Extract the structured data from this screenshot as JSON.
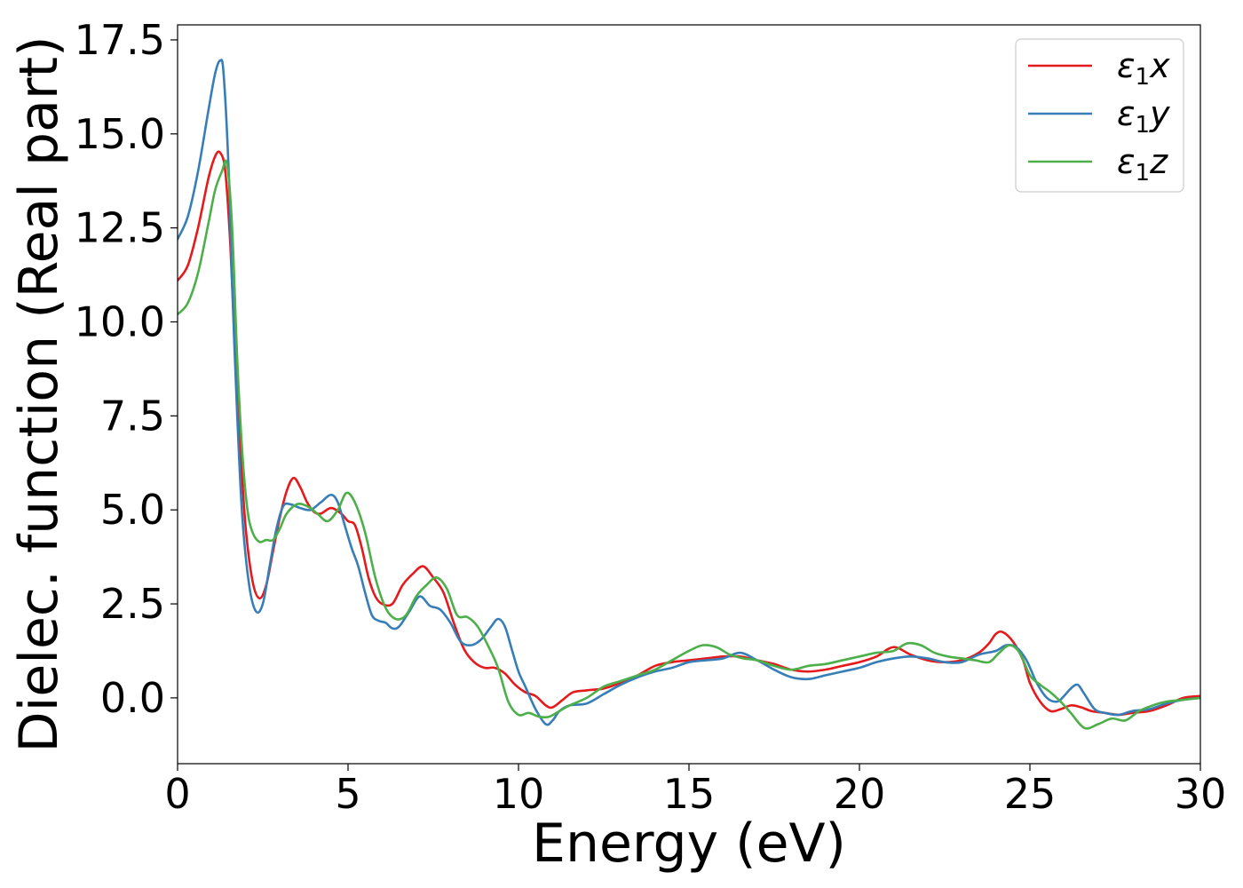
{
  "chart_data": {
    "type": "line",
    "xlabel": "Energy (eV)",
    "ylabel": "Dielec. function (Real part)",
    "xlim": [
      0,
      30
    ],
    "ylim": [
      -1.75,
      17.9
    ],
    "xticks": [
      0,
      5,
      10,
      15,
      20,
      25,
      30
    ],
    "xtick_labels": [
      "0",
      "5",
      "10",
      "15",
      "20",
      "25",
      "30"
    ],
    "yticks": [
      0.0,
      2.5,
      5.0,
      7.5,
      10.0,
      12.5,
      15.0,
      17.5
    ],
    "ytick_labels": [
      "0.0",
      "2.5",
      "5.0",
      "7.5",
      "10.0",
      "12.5",
      "15.0",
      "17.5"
    ],
    "grid": false,
    "legend_position": "top-right",
    "series": [
      {
        "name": "ε1x",
        "symbol": "ε",
        "subscript": "1",
        "component": "x",
        "color": "#e41a1c",
        "x": [
          0,
          0.3,
          0.6,
          0.9,
          1.1,
          1.25,
          1.4,
          1.55,
          1.7,
          1.85,
          2.0,
          2.2,
          2.4,
          2.6,
          2.8,
          3.0,
          3.2,
          3.4,
          3.6,
          3.8,
          4.0,
          4.2,
          4.5,
          4.8,
          5.0,
          5.2,
          5.4,
          5.6,
          5.8,
          6.0,
          6.3,
          6.6,
          6.9,
          7.2,
          7.5,
          7.8,
          8.1,
          8.4,
          8.7,
          9.0,
          9.3,
          9.6,
          9.9,
          10.2,
          10.5,
          10.8,
          11.0,
          11.3,
          11.6,
          12.0,
          12.5,
          13.0,
          13.5,
          14.0,
          14.5,
          15.0,
          15.5,
          16.0,
          16.5,
          17.0,
          17.5,
          18.0,
          18.5,
          19.0,
          19.5,
          20.0,
          20.5,
          21.0,
          21.5,
          22.0,
          22.5,
          23.0,
          23.5,
          23.8,
          24.0,
          24.2,
          24.5,
          24.8,
          25.0,
          25.3,
          25.6,
          25.9,
          26.2,
          26.5,
          26.8,
          27.2,
          27.6,
          28.0,
          28.5,
          29.0,
          29.5,
          30.0
        ],
        "y": [
          11.1,
          11.5,
          12.5,
          13.8,
          14.4,
          14.5,
          14.0,
          12.0,
          9.0,
          6.5,
          4.5,
          3.1,
          2.65,
          3.0,
          3.9,
          4.8,
          5.5,
          5.85,
          5.6,
          5.2,
          4.95,
          4.9,
          5.05,
          4.9,
          4.7,
          4.6,
          4.0,
          3.2,
          2.7,
          2.5,
          2.5,
          3.0,
          3.3,
          3.5,
          3.2,
          2.8,
          2.0,
          1.3,
          0.95,
          0.8,
          0.8,
          0.65,
          0.35,
          0.15,
          0.05,
          -0.2,
          -0.25,
          -0.05,
          0.15,
          0.2,
          0.25,
          0.4,
          0.6,
          0.85,
          0.95,
          1.0,
          1.05,
          1.1,
          1.1,
          1.0,
          0.9,
          0.75,
          0.7,
          0.75,
          0.85,
          0.95,
          1.1,
          1.35,
          1.15,
          1.0,
          0.95,
          1.0,
          1.2,
          1.45,
          1.7,
          1.75,
          1.5,
          1.0,
          0.4,
          -0.1,
          -0.35,
          -0.3,
          -0.2,
          -0.25,
          -0.35,
          -0.4,
          -0.45,
          -0.4,
          -0.35,
          -0.2,
          0.0,
          0.05
        ]
      },
      {
        "name": "ε1y",
        "symbol": "ε",
        "subscript": "1",
        "component": "y",
        "color": "#377eb8",
        "x": [
          0,
          0.3,
          0.6,
          0.9,
          1.1,
          1.25,
          1.35,
          1.5,
          1.6,
          1.75,
          1.9,
          2.1,
          2.3,
          2.5,
          2.7,
          2.9,
          3.1,
          3.3,
          3.6,
          3.9,
          4.2,
          4.5,
          4.7,
          4.9,
          5.1,
          5.3,
          5.5,
          5.7,
          5.9,
          6.1,
          6.3,
          6.5,
          6.8,
          7.1,
          7.4,
          7.7,
          8.0,
          8.3,
          8.6,
          8.9,
          9.2,
          9.4,
          9.6,
          9.8,
          10.0,
          10.2,
          10.5,
          10.8,
          11.0,
          11.2,
          11.5,
          12.0,
          12.5,
          13.0,
          13.5,
          14.0,
          14.5,
          15.0,
          15.5,
          16.0,
          16.5,
          17.0,
          17.5,
          18.0,
          18.5,
          19.0,
          19.5,
          20.0,
          20.5,
          21.0,
          21.5,
          22.0,
          22.5,
          23.0,
          23.5,
          24.0,
          24.3,
          24.6,
          24.9,
          25.2,
          25.5,
          25.8,
          26.0,
          26.2,
          26.4,
          26.6,
          26.9,
          27.2,
          27.6,
          28.0,
          28.5,
          29.0,
          29.5,
          30.0
        ],
        "y": [
          12.2,
          12.8,
          14.0,
          15.6,
          16.6,
          16.95,
          16.6,
          14.0,
          11.0,
          7.5,
          4.8,
          3.0,
          2.3,
          2.5,
          3.5,
          4.5,
          5.1,
          5.15,
          5.05,
          5.0,
          5.2,
          5.4,
          5.2,
          4.6,
          4.0,
          3.5,
          2.8,
          2.2,
          2.05,
          2.0,
          1.85,
          1.9,
          2.3,
          2.7,
          2.45,
          2.35,
          2.0,
          1.5,
          1.4,
          1.55,
          1.9,
          2.1,
          1.9,
          1.3,
          0.7,
          0.3,
          -0.3,
          -0.7,
          -0.6,
          -0.35,
          -0.2,
          -0.15,
          0.1,
          0.35,
          0.55,
          0.7,
          0.8,
          0.95,
          1.0,
          1.05,
          1.2,
          1.0,
          0.75,
          0.55,
          0.5,
          0.6,
          0.7,
          0.8,
          0.95,
          1.05,
          1.1,
          1.05,
          0.95,
          0.95,
          1.15,
          1.25,
          1.4,
          1.35,
          1.0,
          0.4,
          0.0,
          -0.1,
          0.05,
          0.25,
          0.35,
          0.1,
          -0.3,
          -0.4,
          -0.45,
          -0.35,
          -0.3,
          -0.15,
          -0.05,
          0.0
        ]
      },
      {
        "name": "ε1z",
        "symbol": "ε",
        "subscript": "1",
        "component": "z",
        "color": "#4daf4a",
        "x": [
          0,
          0.3,
          0.6,
          0.9,
          1.1,
          1.3,
          1.45,
          1.6,
          1.75,
          1.9,
          2.05,
          2.2,
          2.4,
          2.6,
          2.8,
          3.0,
          3.2,
          3.5,
          3.8,
          4.1,
          4.4,
          4.7,
          4.95,
          5.2,
          5.5,
          5.8,
          6.1,
          6.4,
          6.7,
          7.0,
          7.3,
          7.6,
          7.9,
          8.2,
          8.5,
          8.8,
          9.1,
          9.4,
          9.7,
          10.0,
          10.3,
          10.6,
          10.9,
          11.2,
          11.5,
          12.0,
          12.5,
          13.0,
          13.5,
          14.0,
          14.5,
          15.0,
          15.4,
          15.8,
          16.2,
          16.6,
          17.0,
          17.5,
          18.0,
          18.5,
          19.0,
          19.5,
          20.0,
          20.5,
          21.0,
          21.4,
          21.8,
          22.2,
          22.6,
          23.0,
          23.4,
          23.8,
          24.1,
          24.4,
          24.7,
          25.0,
          25.3,
          25.6,
          25.9,
          26.2,
          26.6,
          27.0,
          27.4,
          27.8,
          28.2,
          28.6,
          29.0,
          29.5,
          30.0
        ],
        "y": [
          10.2,
          10.5,
          11.3,
          12.6,
          13.5,
          14.0,
          14.2,
          12.5,
          9.0,
          6.5,
          5.0,
          4.4,
          4.15,
          4.2,
          4.2,
          4.5,
          4.9,
          5.15,
          5.1,
          4.9,
          4.7,
          5.0,
          5.45,
          5.2,
          4.4,
          3.2,
          2.4,
          2.1,
          2.2,
          2.7,
          3.0,
          3.2,
          2.9,
          2.2,
          2.15,
          1.9,
          1.4,
          0.8,
          -0.1,
          -0.45,
          -0.4,
          -0.5,
          -0.5,
          -0.35,
          -0.2,
          0.0,
          0.3,
          0.45,
          0.6,
          0.75,
          1.0,
          1.25,
          1.4,
          1.35,
          1.15,
          1.05,
          1.0,
          0.85,
          0.75,
          0.85,
          0.9,
          1.0,
          1.1,
          1.2,
          1.25,
          1.45,
          1.4,
          1.2,
          1.1,
          1.05,
          1.0,
          0.95,
          1.2,
          1.4,
          1.2,
          0.6,
          0.35,
          0.15,
          -0.1,
          -0.4,
          -0.8,
          -0.7,
          -0.55,
          -0.6,
          -0.35,
          -0.2,
          -0.1,
          -0.05,
          0.0
        ]
      }
    ]
  }
}
